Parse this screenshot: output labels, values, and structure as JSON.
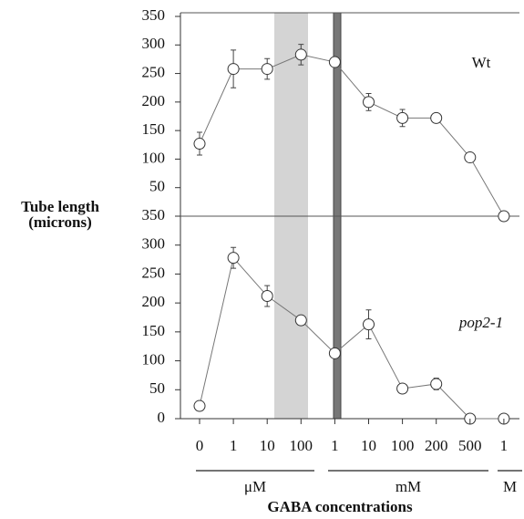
{
  "chart_data": [
    {
      "type": "line",
      "annotation": "Wt",
      "ylabel": [
        "Tube length",
        "(microns)"
      ],
      "ylim": [
        0,
        350
      ],
      "yticks": [
        50,
        100,
        150,
        200,
        250,
        300,
        350
      ],
      "series": [
        {
          "name": "Wt",
          "color": "#777777",
          "values": [
            127,
            258,
            258,
            283,
            270,
            200,
            172,
            172,
            103,
            0
          ],
          "errors": [
            20,
            33,
            18,
            18,
            null,
            15,
            15,
            null,
            null,
            null
          ]
        }
      ]
    },
    {
      "type": "line",
      "annotation": "pop2-1",
      "xlabel": "GABA concentrations",
      "categories": [
        "0",
        "1",
        "10",
        "100",
        "1",
        "10",
        "100",
        "200",
        "500",
        "1"
      ],
      "groups": [
        "μM",
        "mM",
        "M"
      ],
      "ylim": [
        0,
        350
      ],
      "yticks": [
        0,
        50,
        100,
        150,
        200,
        250,
        300,
        350
      ],
      "series": [
        {
          "name": "pop2-1",
          "color": "#777777",
          "values": [
            22,
            278,
            212,
            170,
            113,
            163,
            52,
            60,
            0,
            0
          ],
          "errors": [
            null,
            18,
            18,
            null,
            null,
            25,
            null,
            10,
            null,
            null
          ]
        }
      ]
    }
  ]
}
